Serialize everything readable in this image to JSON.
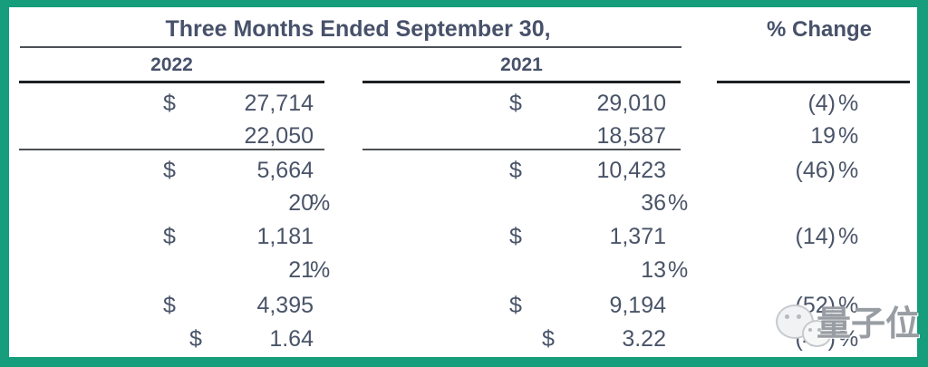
{
  "colors": {
    "border_teal": "#159d7c",
    "text_slate": "#4a5468",
    "rule_dark": "#1d2023",
    "rule_gray": "#4d5156",
    "watermark_gray": "#989da3"
  },
  "header": {
    "period_title": "Three Months Ended September 30,",
    "change_title": "% Change",
    "col_2022": "2022",
    "col_2021": "2021"
  },
  "table": {
    "rows": [
      {
        "d1": "$",
        "v1": "27,714",
        "p1": "",
        "d2": "$",
        "v2": "29,010",
        "p2": "",
        "chg": "(4)",
        "chgp": "%"
      },
      {
        "d1": "",
        "v1": "22,050",
        "p1": "",
        "d2": "",
        "v2": "18,587",
        "p2": "",
        "chg": "19",
        "chgp": "%"
      },
      {
        "d1": "$",
        "v1": "5,664",
        "p1": "",
        "d2": "$",
        "v2": "10,423",
        "p2": "",
        "chg": "(46)",
        "chgp": "%"
      },
      {
        "d1": "",
        "v1": "20",
        "p1": "%",
        "d2": "",
        "v2": "36",
        "p2": "%",
        "chg": "",
        "chgp": ""
      },
      {
        "d1": "$",
        "v1": "1,181",
        "p1": "",
        "d2": "$",
        "v2": "1,371",
        "p2": "",
        "chg": "(14)",
        "chgp": "%"
      },
      {
        "d1": "",
        "v1": "21",
        "p1": "%",
        "d2": "",
        "v2": "13",
        "p2": "%",
        "chg": "",
        "chgp": ""
      },
      {
        "d1": "$",
        "v1": "4,395",
        "p1": "",
        "d2": "$",
        "v2": "9,194",
        "p2": "",
        "chg": "(52)",
        "chgp": "%"
      },
      {
        "d1": "$",
        "v1": "1.64",
        "p1": "",
        "d2": "$",
        "v2": "3.22",
        "p2": "",
        "chg": "(49)",
        "chgp": "%"
      }
    ]
  },
  "watermark": {
    "text": "量子位"
  }
}
